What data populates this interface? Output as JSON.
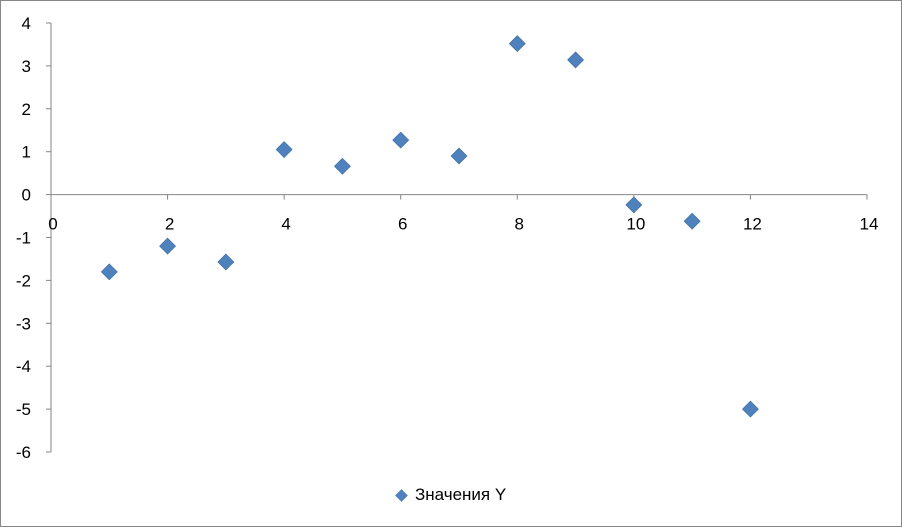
{
  "chart_data": {
    "type": "scatter",
    "title": "",
    "xlabel": "",
    "ylabel": "",
    "xlim": [
      0,
      14
    ],
    "ylim": [
      -6,
      4
    ],
    "x_ticks": [
      0,
      2,
      4,
      6,
      8,
      10,
      12,
      14
    ],
    "y_ticks": [
      4,
      3,
      2,
      1,
      0,
      -1,
      -2,
      -3,
      -4,
      -5,
      -6
    ],
    "grid": false,
    "legend_position": "bottom",
    "marker": "diamond",
    "colors": {
      "series": "#4F81BD",
      "axis": "#868686"
    },
    "series": [
      {
        "name": "Значения Y",
        "points": [
          {
            "x": 1,
            "y": -1.8
          },
          {
            "x": 2,
            "y": -1.2
          },
          {
            "x": 3,
            "y": -1.57
          },
          {
            "x": 4,
            "y": 1.05
          },
          {
            "x": 5,
            "y": 0.66
          },
          {
            "x": 6,
            "y": 1.27
          },
          {
            "x": 7,
            "y": 0.9
          },
          {
            "x": 8,
            "y": 3.52
          },
          {
            "x": 9,
            "y": 3.14
          },
          {
            "x": 10,
            "y": -0.24
          },
          {
            "x": 11,
            "y": -0.62
          },
          {
            "x": 12,
            "y": -5.0
          }
        ]
      }
    ]
  }
}
